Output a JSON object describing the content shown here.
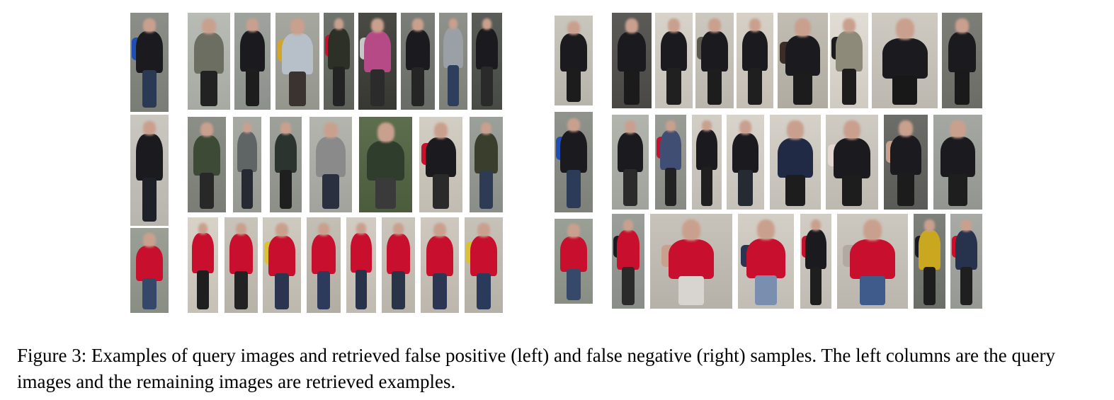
{
  "figure": {
    "caption": "Figure 3: Examples of query images and retrieved false positive (left) and false negative (right) samples. The left columns are the query images and the remaining images are retrieved examples."
  },
  "colors": {
    "dark_clothing": "#1b1b1f",
    "red_clothing": "#c8102e",
    "blue_backpack": "#1f4fb5",
    "grey_clothing": "#8a8a8a",
    "skin_blur": "#c9a08e",
    "station_bg_light": "#d9d4cc",
    "station_bg_dark": "#4a4a45"
  }
}
